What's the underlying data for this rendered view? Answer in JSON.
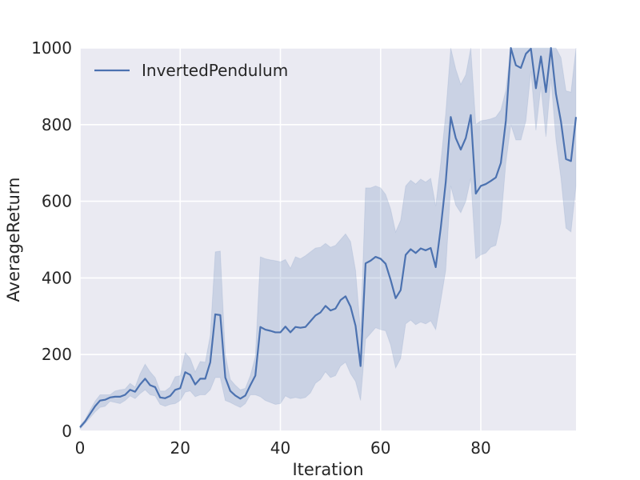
{
  "chart_data": {
    "type": "line",
    "xlabel": "Iteration",
    "ylabel": "AverageReturn",
    "xlim": [
      0,
      99
    ],
    "ylim": [
      0,
      1000
    ],
    "x_ticks": [
      "0",
      "20",
      "40",
      "60",
      "80"
    ],
    "y_ticks": [
      "0",
      "200",
      "400",
      "600",
      "800",
      "1000"
    ],
    "grid": true,
    "legend_position": "top-left",
    "colors": {
      "background": "#eaeaf2",
      "grid": "#ffffff",
      "line": "#4c72b0",
      "band": "#4c72b0"
    },
    "series": [
      {
        "name": "InvertedPendulum",
        "x": [
          0,
          1,
          2,
          3,
          4,
          5,
          6,
          7,
          8,
          9,
          10,
          11,
          12,
          13,
          14,
          15,
          16,
          17,
          18,
          19,
          20,
          21,
          22,
          23,
          24,
          25,
          26,
          27,
          28,
          29,
          30,
          31,
          32,
          33,
          34,
          35,
          36,
          37,
          38,
          39,
          40,
          41,
          42,
          43,
          44,
          45,
          46,
          47,
          48,
          49,
          50,
          51,
          52,
          53,
          54,
          55,
          56,
          57,
          58,
          59,
          60,
          61,
          62,
          63,
          64,
          65,
          66,
          67,
          68,
          69,
          70,
          71,
          72,
          73,
          74,
          75,
          76,
          77,
          78,
          79,
          80,
          81,
          82,
          83,
          84,
          85,
          86,
          87,
          88,
          89,
          90,
          91,
          92,
          93,
          94,
          95,
          96,
          97,
          98,
          99
        ],
        "values": [
          10,
          25,
          45,
          65,
          80,
          82,
          88,
          90,
          90,
          95,
          108,
          103,
          122,
          137,
          120,
          115,
          88,
          86,
          92,
          108,
          112,
          154,
          147,
          122,
          137,
          137,
          180,
          305,
          303,
          140,
          105,
          93,
          85,
          93,
          120,
          145,
          272,
          265,
          262,
          258,
          258,
          273,
          258,
          272,
          270,
          272,
          287,
          302,
          310,
          327,
          315,
          320,
          342,
          352,
          325,
          275,
          170,
          438,
          445,
          455,
          450,
          437,
          395,
          347,
          368,
          460,
          475,
          465,
          477,
          472,
          478,
          428,
          530,
          650,
          820,
          765,
          735,
          765,
          825,
          620,
          640,
          645,
          653,
          662,
          700,
          810,
          1000,
          955,
          948,
          985,
          998,
          895,
          978,
          885,
          1000,
          880,
          808,
          710,
          705,
          820
        ],
        "band_low": [
          5,
          20,
          35,
          50,
          62,
          65,
          78,
          75,
          72,
          80,
          92,
          85,
          98,
          108,
          95,
          92,
          70,
          65,
          70,
          72,
          80,
          102,
          105,
          90,
          95,
          95,
          108,
          140,
          140,
          80,
          75,
          68,
          62,
          72,
          95,
          95,
          90,
          80,
          75,
          70,
          72,
          92,
          85,
          88,
          85,
          88,
          100,
          125,
          135,
          155,
          140,
          145,
          170,
          180,
          150,
          130,
          80,
          240,
          255,
          270,
          265,
          262,
          225,
          165,
          190,
          280,
          290,
          278,
          285,
          280,
          288,
          265,
          340,
          420,
          640,
          590,
          570,
          600,
          660,
          450,
          460,
          465,
          480,
          485,
          545,
          700,
          800,
          760,
          760,
          810,
          940,
          785,
          900,
          768,
          920,
          760,
          660,
          530,
          520,
          640
        ],
        "band_high": [
          15,
          30,
          55,
          78,
          95,
          95,
          95,
          105,
          108,
          110,
          125,
          115,
          150,
          175,
          155,
          140,
          105,
          105,
          115,
          142,
          145,
          205,
          190,
          155,
          182,
          180,
          250,
          468,
          470,
          200,
          135,
          120,
          108,
          112,
          145,
          195,
          455,
          450,
          447,
          445,
          442,
          448,
          425,
          455,
          450,
          458,
          468,
          478,
          480,
          490,
          480,
          485,
          500,
          515,
          495,
          420,
          260,
          635,
          635,
          640,
          635,
          618,
          580,
          520,
          550,
          640,
          655,
          645,
          658,
          650,
          660,
          588,
          700,
          830,
          1000,
          945,
          905,
          930,
          1000,
          800,
          810,
          812,
          815,
          820,
          838,
          890,
          1000,
          1000,
          1000,
          1000,
          1000,
          1000,
          1000,
          1000,
          1000,
          1000,
          975,
          888,
          885,
          1000
        ]
      }
    ]
  }
}
